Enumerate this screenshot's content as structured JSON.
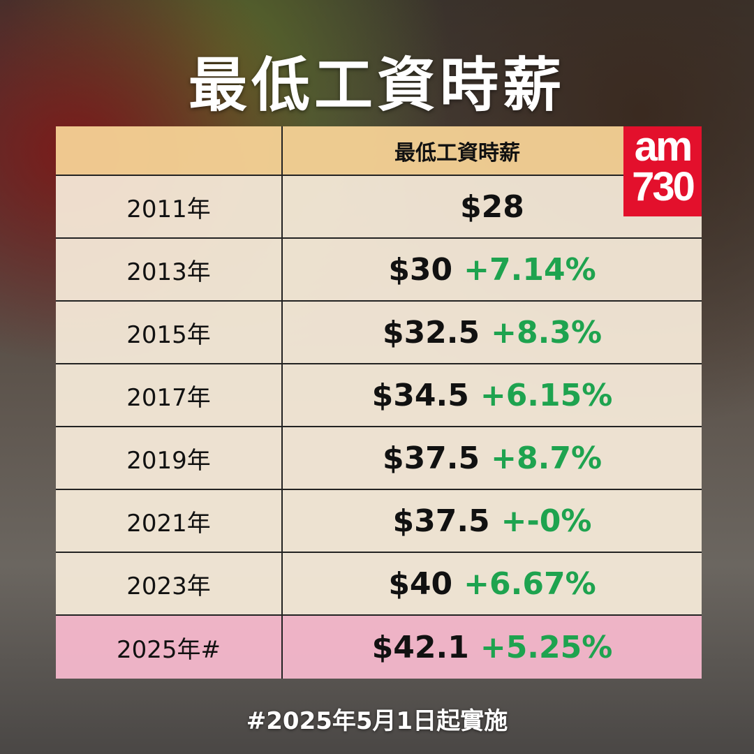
{
  "title": "最低工資時薪",
  "table": {
    "header": [
      "",
      "最低工資時薪"
    ],
    "rows": [
      {
        "year": "2011年",
        "wage": "$28",
        "change": ""
      },
      {
        "year": "2013年",
        "wage": "$30",
        "change": "+7.14%"
      },
      {
        "year": "2015年",
        "wage": "$32.5",
        "change": "+8.3%"
      },
      {
        "year": "2017年",
        "wage": "$34.5",
        "change": "+6.15%"
      },
      {
        "year": "2019年",
        "wage": "$37.5",
        "change": "+8.7%"
      },
      {
        "year": "2021年",
        "wage": "$37.5",
        "change": "+-0%"
      },
      {
        "year": "2023年",
        "wage": "$40",
        "change": "+6.67%"
      },
      {
        "year": "2025年#",
        "wage": "$42.1",
        "change": "+5.25%"
      }
    ]
  },
  "logo": {
    "line1": "am",
    "line2": "730"
  },
  "footnote": "#2025年5月1日起實施",
  "colors": {
    "header": "#f6d296",
    "row": "#f8ecda",
    "highlight": "#f6b8cc",
    "change": "#1ea34f",
    "logo": "#e3102c"
  }
}
